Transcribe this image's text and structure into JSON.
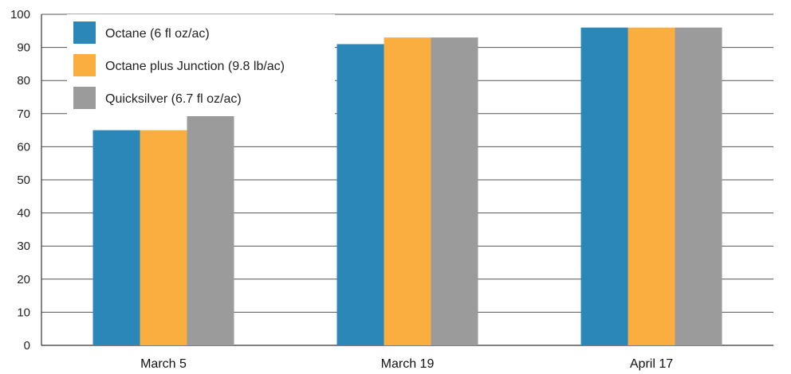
{
  "chart_data": {
    "type": "bar",
    "categories": [
      "March 5",
      "March 19",
      "April 17"
    ],
    "series": [
      {
        "name": "Octane (6 fl oz/ac)",
        "values": [
          65,
          91,
          96
        ],
        "color": "#2b87b8"
      },
      {
        "name": "Octane plus Junction (9.8 lb/ac)",
        "values": [
          65,
          93,
          96
        ],
        "color": "#f9ae3f"
      },
      {
        "name": "Quicksilver (6.7 fl oz/ac)",
        "values": [
          70,
          93,
          96
        ],
        "color": "#9b9b9b"
      }
    ],
    "yticks": [
      "0",
      "10",
      "20",
      "30",
      "40",
      "50",
      "60",
      "70",
      "80",
      "90",
      "100"
    ],
    "ylim": [
      0,
      100
    ],
    "grid": true,
    "legend_position": "top-left"
  }
}
